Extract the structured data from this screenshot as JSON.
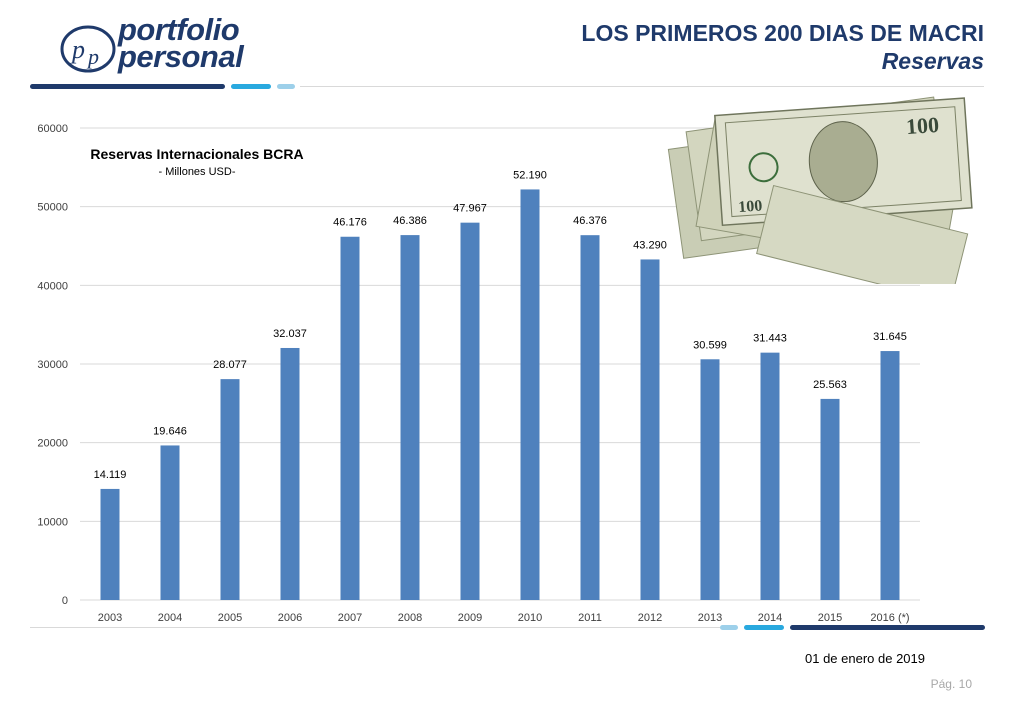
{
  "header": {
    "brand_line1": "portfolio",
    "brand_line2": "personal",
    "title": "LOS PRIMEROS 200 DIAS DE MACRI",
    "subtitle": "Reservas"
  },
  "footer": {
    "date": "01 de enero de 2019",
    "page": "Pág. 10"
  },
  "colors": {
    "bar": "#4f81bd",
    "navy": "#1f3a6b",
    "cyan": "#29a9df",
    "light_blue": "#9dd0ea"
  },
  "chart_data": {
    "type": "bar",
    "title": "Reservas Internacionales BCRA",
    "subtitle": "- Millones USD-",
    "categories": [
      "2003",
      "2004",
      "2005",
      "2006",
      "2007",
      "2008",
      "2009",
      "2010",
      "2011",
      "2012",
      "2013",
      "2014",
      "2015",
      "2016 (*)"
    ],
    "values": [
      14119,
      19646,
      28077,
      32037,
      46176,
      46386,
      47967,
      52190,
      46376,
      43290,
      30599,
      31443,
      25563,
      31645
    ],
    "data_labels": [
      "14.119",
      "19.646",
      "28.077",
      "32.037",
      "46.176",
      "46.386",
      "47.967",
      "52.190",
      "46.376",
      "43.290",
      "30.599",
      "31.443",
      "25.563",
      "31.645"
    ],
    "yticks": [
      0,
      10000,
      20000,
      30000,
      40000,
      50000,
      60000
    ],
    "ylim": [
      0,
      60000
    ],
    "grid": true,
    "legend": "none"
  }
}
